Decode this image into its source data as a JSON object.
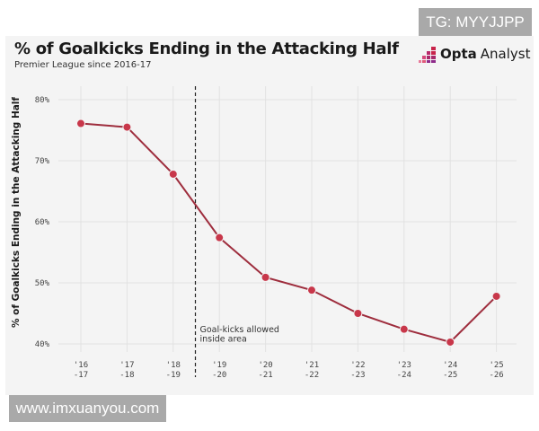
{
  "watermarks": {
    "top": "TG: MYYJJPP",
    "bottom": "www.imxuanyou.com"
  },
  "logo": {
    "bold": "Opta",
    "regular": "Analyst",
    "icon": "bar-steps-logo-icon",
    "colors": [
      "#c8234a",
      "#8e2a8a",
      "#e05a7a"
    ]
  },
  "chart_data": {
    "type": "line",
    "title": "% of Goalkicks Ending in the Attacking Half",
    "subtitle": "Premier League since 2016-17",
    "xlabel": "",
    "ylabel": "% of Goalkicks Ending in the Attacking Half",
    "categories": [
      [
        "'16",
        "-17"
      ],
      [
        "'17",
        "-18"
      ],
      [
        "'18",
        "-19"
      ],
      [
        "'19",
        "-20"
      ],
      [
        "'20",
        "-21"
      ],
      [
        "'21",
        "-22"
      ],
      [
        "'22",
        "-23"
      ],
      [
        "'23",
        "-24"
      ],
      [
        "'24",
        "-25"
      ],
      [
        "'25",
        "-26"
      ]
    ],
    "series": [
      {
        "name": "% of goalkicks ending in attacking half",
        "values": [
          76.1,
          75.5,
          67.8,
          57.4,
          50.9,
          48.8,
          45.0,
          42.4,
          40.3,
          47.8
        ],
        "color": "#c8374a",
        "line_color": "#9e2d3d"
      }
    ],
    "ylim": [
      40,
      80
    ],
    "yticks": [
      40,
      50,
      60,
      70,
      80
    ],
    "ytick_labels": [
      "40%",
      "50%",
      "60%",
      "70%",
      "80%"
    ],
    "grid": true,
    "annotation": {
      "after_category_index": 2,
      "lines": [
        "Goal-kicks allowed",
        "inside area"
      ],
      "style": "dashed-vertical"
    }
  }
}
